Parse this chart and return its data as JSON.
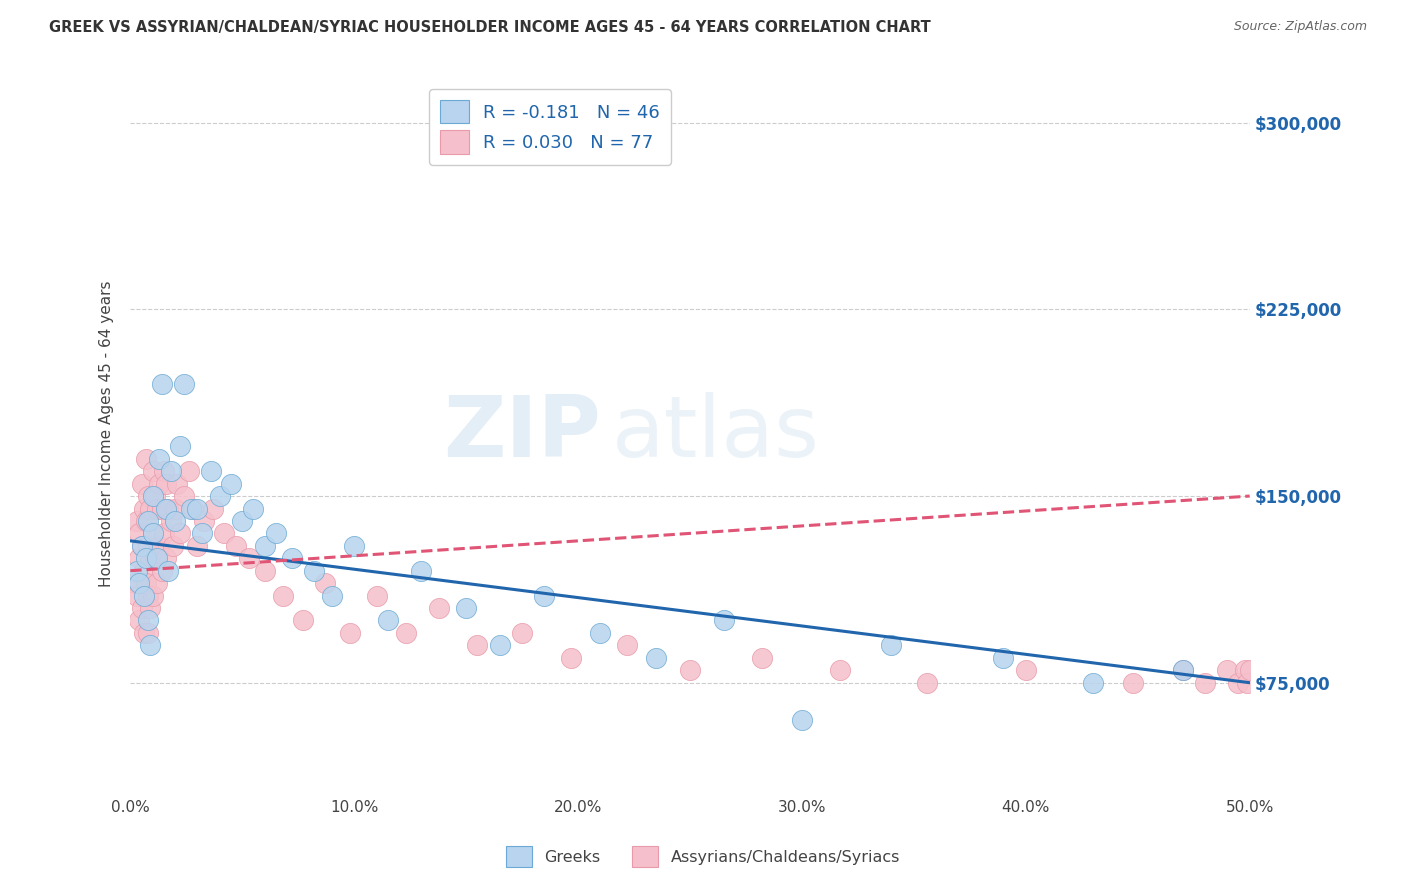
{
  "title": "GREEK VS ASSYRIAN/CHALDEAN/SYRIAC HOUSEHOLDER INCOME AGES 45 - 64 YEARS CORRELATION CHART",
  "source": "Source: ZipAtlas.com",
  "ylabel": "Householder Income Ages 45 - 64 years",
  "xlim": [
    0.0,
    0.5
  ],
  "ylim": [
    30000,
    320000
  ],
  "yticks": [
    75000,
    150000,
    225000,
    300000
  ],
  "ytick_labels": [
    "$75,000",
    "$150,000",
    "$225,000",
    "$300,000"
  ],
  "xticks": [
    0.0,
    0.1,
    0.2,
    0.3,
    0.4,
    0.5
  ],
  "xtick_labels": [
    "0.0%",
    "10.0%",
    "20.0%",
    "30.0%",
    "40.0%",
    "50.0%"
  ],
  "background_color": "#ffffff",
  "grid_color": "#cccccc",
  "watermark_zip": "ZIP",
  "watermark_atlas": "atlas",
  "greeks_R": -0.181,
  "greeks_N": 46,
  "assyrians_R": 0.03,
  "assyrians_N": 77,
  "greeks_color": "#b8d4ee",
  "greeks_edge_color": "#6aaad4",
  "greeks_line_color": "#2166ac",
  "assyrians_color": "#f5c0cb",
  "assyrians_edge_color": "#e89aaa",
  "assyrians_line_color": "#e05575",
  "blue_label_color": "#2166ac",
  "greeks_x": [
    0.003,
    0.004,
    0.005,
    0.006,
    0.007,
    0.008,
    0.008,
    0.009,
    0.01,
    0.01,
    0.012,
    0.013,
    0.014,
    0.016,
    0.017,
    0.018,
    0.02,
    0.022,
    0.024,
    0.027,
    0.03,
    0.032,
    0.036,
    0.04,
    0.045,
    0.05,
    0.055,
    0.06,
    0.065,
    0.072,
    0.082,
    0.09,
    0.1,
    0.115,
    0.13,
    0.15,
    0.165,
    0.185,
    0.21,
    0.235,
    0.265,
    0.3,
    0.34,
    0.39,
    0.43,
    0.47
  ],
  "greeks_y": [
    120000,
    115000,
    130000,
    110000,
    125000,
    140000,
    100000,
    90000,
    135000,
    150000,
    125000,
    165000,
    195000,
    145000,
    120000,
    160000,
    140000,
    170000,
    195000,
    145000,
    145000,
    135000,
    160000,
    150000,
    155000,
    140000,
    145000,
    130000,
    135000,
    125000,
    120000,
    110000,
    130000,
    100000,
    120000,
    105000,
    90000,
    110000,
    95000,
    85000,
    100000,
    60000,
    90000,
    85000,
    75000,
    80000
  ],
  "assyrians_x": [
    0.002,
    0.003,
    0.003,
    0.004,
    0.004,
    0.004,
    0.005,
    0.005,
    0.005,
    0.006,
    0.006,
    0.006,
    0.007,
    0.007,
    0.007,
    0.008,
    0.008,
    0.008,
    0.008,
    0.009,
    0.009,
    0.009,
    0.01,
    0.01,
    0.01,
    0.011,
    0.011,
    0.012,
    0.012,
    0.013,
    0.013,
    0.014,
    0.014,
    0.015,
    0.015,
    0.016,
    0.016,
    0.017,
    0.018,
    0.019,
    0.02,
    0.021,
    0.022,
    0.024,
    0.026,
    0.028,
    0.03,
    0.033,
    0.037,
    0.042,
    0.047,
    0.053,
    0.06,
    0.068,
    0.077,
    0.087,
    0.098,
    0.11,
    0.123,
    0.138,
    0.155,
    0.175,
    0.197,
    0.222,
    0.25,
    0.282,
    0.317,
    0.356,
    0.4,
    0.448,
    0.47,
    0.48,
    0.49,
    0.495,
    0.498,
    0.499,
    0.5
  ],
  "assyrians_y": [
    115000,
    140000,
    110000,
    135000,
    125000,
    100000,
    155000,
    130000,
    105000,
    145000,
    120000,
    95000,
    165000,
    140000,
    115000,
    150000,
    130000,
    110000,
    95000,
    145000,
    125000,
    105000,
    160000,
    135000,
    110000,
    150000,
    125000,
    145000,
    115000,
    155000,
    130000,
    145000,
    120000,
    160000,
    135000,
    155000,
    125000,
    145000,
    140000,
    130000,
    145000,
    155000,
    135000,
    150000,
    160000,
    145000,
    130000,
    140000,
    145000,
    135000,
    130000,
    125000,
    120000,
    110000,
    100000,
    115000,
    95000,
    110000,
    95000,
    105000,
    90000,
    95000,
    85000,
    90000,
    80000,
    85000,
    80000,
    75000,
    80000,
    75000,
    80000,
    75000,
    80000,
    75000,
    80000,
    75000,
    80000
  ],
  "greek_regression_x0": 0.0,
  "greek_regression_y0": 132000,
  "greek_regression_x1": 0.5,
  "greek_regression_y1": 75000,
  "assyrian_regression_x0": 0.0,
  "assyrian_regression_y0": 120000,
  "assyrian_regression_x1": 0.5,
  "assyrian_regression_y1": 150000
}
